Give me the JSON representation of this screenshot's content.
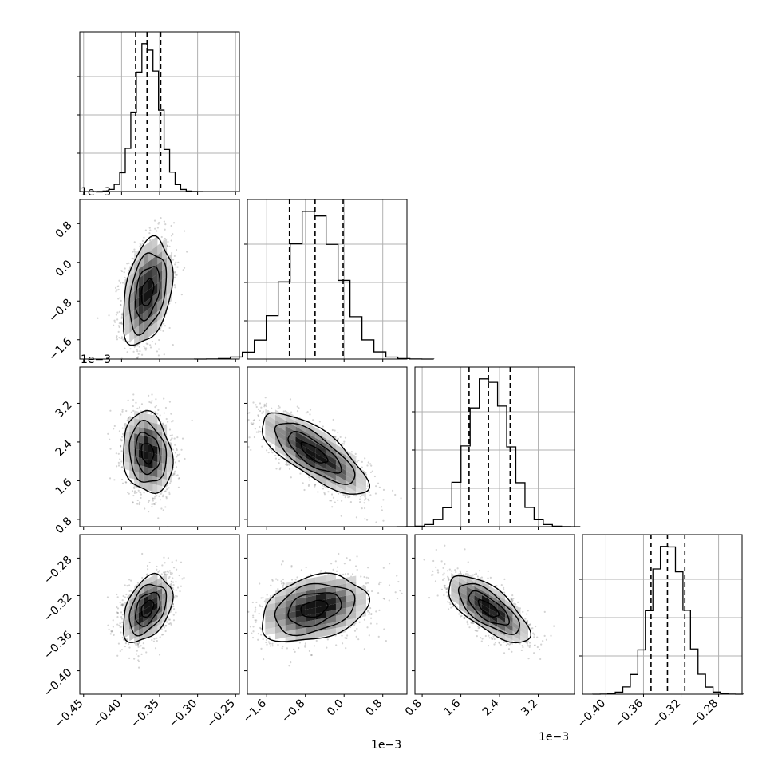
{
  "figure": {
    "type": "corner-plot",
    "offset_labels": {
      "y_row2": "1e−3",
      "y_row3": "1e−3",
      "x_col2": "1e−3",
      "x_col3": "1e−3"
    }
  },
  "chart_data": {
    "type": "corner",
    "parameters": [
      {
        "index": 0,
        "range": [
          -0.455,
          -0.245
        ],
        "ticks": [
          -0.45,
          -0.4,
          -0.35,
          -0.3,
          -0.25
        ],
        "tick_labels": [
          "−0.45",
          "−0.40",
          "−0.35",
          "−0.30",
          "−0.25"
        ],
        "quantiles": [
          -0.3815,
          -0.3665,
          -0.3485
        ],
        "peak": -0.366,
        "sigma": 0.0162
      },
      {
        "index": 1,
        "range": [
          -2.0,
          1.3
        ],
        "ticks": [
          -1.6,
          -0.8,
          0.0,
          0.8
        ],
        "tick_labels": [
          "−1.6",
          "−0.8",
          "0.0",
          "0.8"
        ],
        "quantiles": [
          -1.13,
          -0.6,
          -0.02
        ],
        "peak": -0.62,
        "sigma": 0.55
      },
      {
        "index": 2,
        "range": [
          0.65,
          3.95
        ],
        "ticks": [
          0.8,
          1.6,
          2.4,
          3.2
        ],
        "tick_labels": [
          "0.8",
          "1.6",
          "2.4",
          "3.2"
        ],
        "quantiles": [
          1.77,
          2.17,
          2.62
        ],
        "peak": 2.17,
        "sigma": 0.42
      },
      {
        "index": 3,
        "range": [
          -0.425,
          -0.255
        ],
        "ticks": [
          -0.4,
          -0.36,
          -0.32,
          -0.28
        ],
        "tick_labels": [
          "−0.40",
          "−0.36",
          "−0.32",
          "−0.28"
        ],
        "quantiles": [
          -0.352,
          -0.3345,
          -0.316
        ],
        "peak": -0.334,
        "sigma": 0.0178
      }
    ],
    "correlations": [
      {
        "i": 1,
        "j": 0,
        "rho": 0.35
      },
      {
        "i": 2,
        "j": 0,
        "rho": -0.15
      },
      {
        "i": 2,
        "j": 1,
        "rho": -0.75
      },
      {
        "i": 3,
        "j": 0,
        "rho": 0.4
      },
      {
        "i": 3,
        "j": 1,
        "rho": 0.3
      },
      {
        "i": 3,
        "j": 2,
        "rho": -0.7
      }
    ],
    "contour_levels": [
      0.5,
      1.0,
      1.5,
      2.0
    ],
    "grid": true,
    "colors": {
      "line": "#000000",
      "grid": "#b0b0b0",
      "scatter": "#808080"
    }
  }
}
